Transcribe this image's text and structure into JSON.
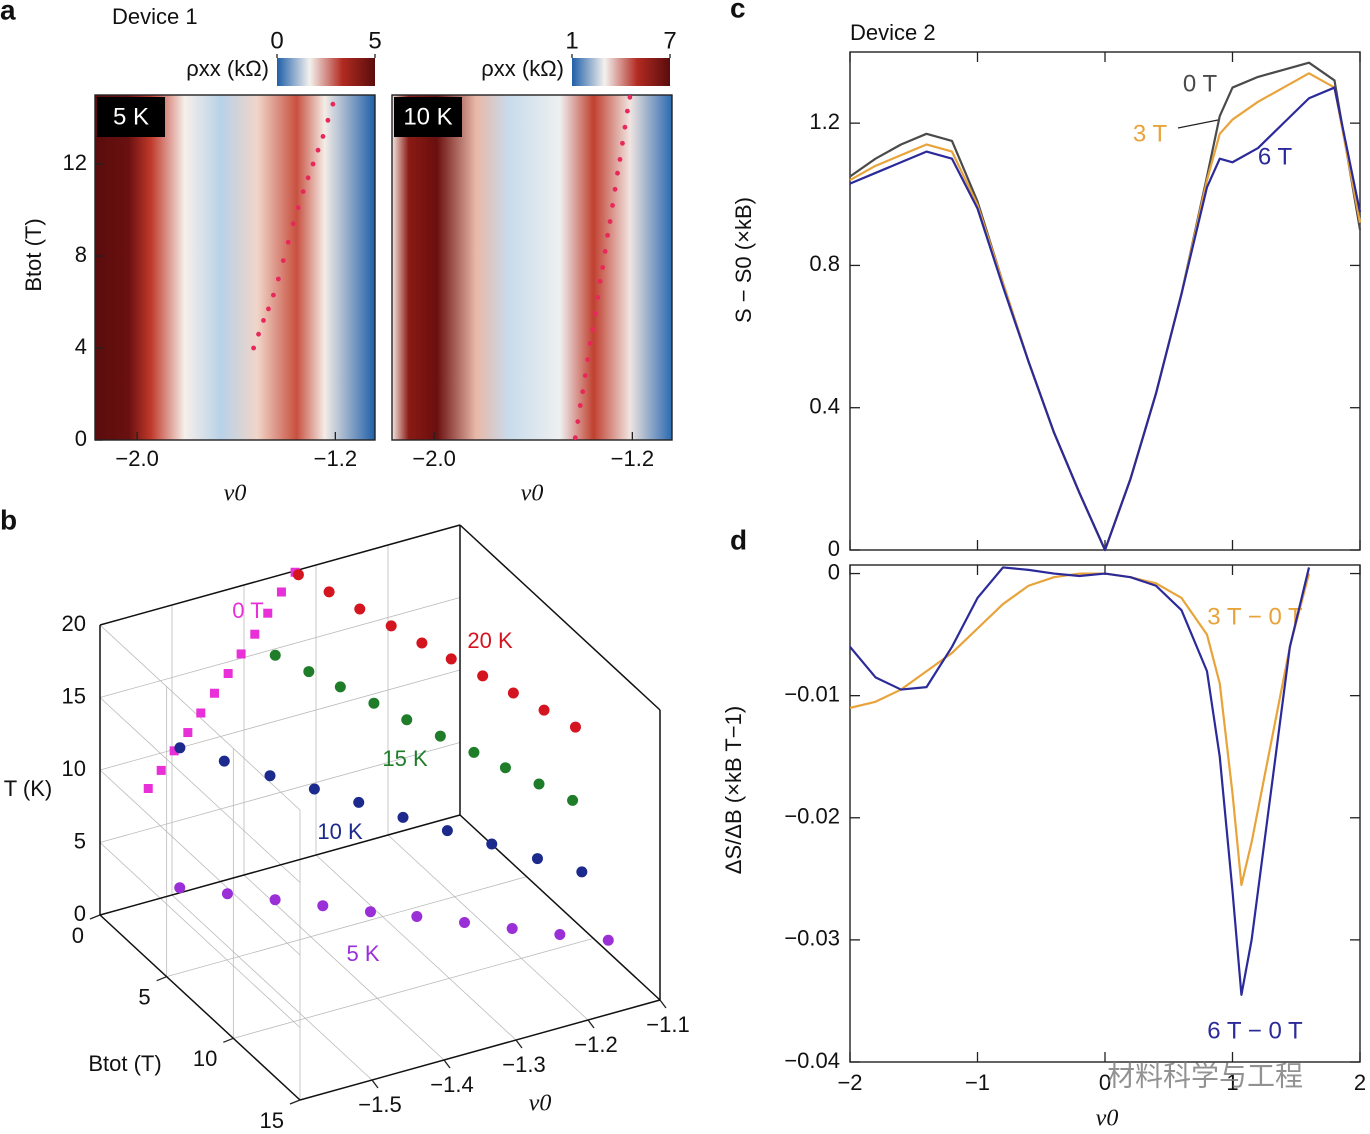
{
  "chart_data": [
    {
      "type": "heatmap",
      "panel_label": "a",
      "title": "Device 1",
      "annotation": "5 K",
      "colorbar": {
        "label": "ρxx (kΩ)",
        "lim": [
          0,
          5
        ],
        "ticks": [
          0,
          5
        ],
        "colormap": [
          "#1f5fa8",
          "#f4f1ee",
          "#b22b22",
          "#5a0c0c"
        ]
      },
      "xlim": [
        -2.17,
        -1.04
      ],
      "ylim": [
        0,
        15
      ],
      "xticks": [
        {
          "value": -2.0,
          "label": "−2.0"
        },
        {
          "value": -1.2,
          "label": "−1.2"
        }
      ],
      "yticks": [
        0,
        4,
        8,
        12
      ],
      "x_label": "ν0",
      "y_label": "Btot (T)",
      "series": [
        {
          "color": "#e8285a",
          "x": [
            -1.53,
            -1.51,
            -1.49,
            -1.47,
            -1.45,
            -1.43,
            -1.41,
            -1.39,
            -1.37,
            -1.35,
            -1.33,
            -1.31,
            -1.29,
            -1.27,
            -1.25,
            -1.23,
            -1.21
          ],
          "y": [
            4.0,
            4.6,
            5.2,
            5.7,
            6.3,
            7.0,
            7.8,
            8.6,
            9.4,
            10.1,
            10.8,
            11.4,
            12.0,
            12.6,
            13.2,
            13.9,
            14.6
          ]
        }
      ]
    },
    {
      "type": "heatmap",
      "annotation": "10 K",
      "colorbar": {
        "label": "ρxx (kΩ)",
        "lim": [
          1,
          7
        ],
        "ticks": [
          1,
          7
        ],
        "colormap": [
          "#1f5fa8",
          "#f4f1ee",
          "#b22b22",
          "#5a0c0c"
        ]
      },
      "xlim": [
        -2.17,
        -1.04
      ],
      "ylim": [
        0,
        15
      ],
      "xticks": [
        {
          "value": -2.0,
          "label": "−2.0"
        },
        {
          "value": -1.2,
          "label": "−1.2"
        }
      ],
      "x_label": "ν0",
      "series": [
        {
          "color": "#e8285a",
          "x": [
            -1.43,
            -1.42,
            -1.41,
            -1.4,
            -1.39,
            -1.38,
            -1.37,
            -1.36,
            -1.35,
            -1.34,
            -1.33,
            -1.32,
            -1.31,
            -1.3,
            -1.29,
            -1.28,
            -1.27,
            -1.26,
            -1.25,
            -1.24,
            -1.23,
            -1.22,
            -1.21
          ],
          "y": [
            0.1,
            0.8,
            1.5,
            2.1,
            2.8,
            3.5,
            4.2,
            4.8,
            5.5,
            6.2,
            6.9,
            7.5,
            8.2,
            8.9,
            9.5,
            10.2,
            10.9,
            11.6,
            12.2,
            12.9,
            13.6,
            14.3,
            14.9
          ]
        }
      ]
    },
    {
      "type": "scatter3d",
      "panel_label": "b",
      "xlim": [
        -1.6,
        -1.1
      ],
      "xticks": [
        {
          "value": -1.5,
          "label": "−1.5"
        },
        {
          "value": -1.4,
          "label": "−1.4"
        },
        {
          "value": -1.3,
          "label": "−1.3"
        },
        {
          "value": -1.2,
          "label": "−1.2"
        },
        {
          "value": -1.1,
          "label": "−1.1"
        }
      ],
      "ylim": [
        0,
        15
      ],
      "yticks": [
        0,
        5,
        10,
        15
      ],
      "zlim": [
        0,
        20
      ],
      "zticks": [
        0,
        5,
        10,
        15,
        20
      ],
      "x_label": "ν0",
      "y_label": "Btot (T)",
      "z_label": "T (K)",
      "series": [
        {
          "name": "0 T",
          "color": "#e82fd8",
          "marker": "square",
          "x": [
            -1.533,
            -1.515,
            -1.497,
            -1.478,
            -1.46,
            -1.441,
            -1.422,
            -1.404,
            -1.385,
            -1.367,
            -1.348,
            -1.329
          ],
          "y": [
            0,
            0,
            0,
            0,
            0,
            0,
            0,
            0,
            0,
            0,
            0,
            0
          ],
          "z": [
            7.8,
            8.8,
            9.9,
            10.9,
            12.0,
            13.1,
            14.2,
            15.3,
            16.4,
            17.6,
            18.8,
            19.9
          ]
        },
        {
          "name": "20 K",
          "color": "#d4141e",
          "x": [
            -1.33,
            -1.317,
            -1.304,
            -1.29,
            -1.277,
            -1.264,
            -1.25,
            -1.237,
            -1.224,
            -1.21
          ],
          "y": [
            0.3,
            1.9,
            3.5,
            5.1,
            6.7,
            8.2,
            9.8,
            11.4,
            13.0,
            14.6
          ],
          "z": [
            20,
            20,
            20,
            20,
            20,
            20,
            20,
            20,
            20,
            20
          ]
        },
        {
          "name": "15 K",
          "color": "#1f7d2a",
          "x": [
            -1.364,
            -1.347,
            -1.331,
            -1.314,
            -1.298,
            -1.281,
            -1.264,
            -1.248,
            -1.231,
            -1.214
          ],
          "y": [
            0.4,
            2.0,
            3.5,
            5.1,
            6.7,
            8.3,
            9.9,
            11.4,
            13.0,
            14.6
          ],
          "z": [
            15,
            15,
            15,
            15,
            15,
            15,
            15,
            15,
            15,
            15
          ]
        },
        {
          "name": "10 K",
          "color": "#1b2a8c",
          "x": [
            -1.489,
            -1.457,
            -1.425,
            -1.393,
            -1.361,
            -1.331,
            -1.299,
            -1.267,
            -1.235,
            -1.203
          ],
          "y": [
            0,
            1.6,
            3.3,
            4.9,
            6.5,
            8.2,
            9.8,
            11.4,
            13.1,
            14.7
          ],
          "z": [
            10,
            10,
            10,
            10,
            10,
            10,
            10,
            10,
            10,
            10
          ]
        },
        {
          "name": "5 K",
          "color": "#9a2fd8",
          "x": [
            -1.567,
            -1.523,
            -1.479,
            -1.435,
            -1.391,
            -1.347,
            -1.303,
            -1.259,
            -1.215,
            -1.17
          ],
          "y": [
            4.2,
            5.4,
            6.6,
            7.8,
            9.0,
            10.1,
            11.3,
            12.5,
            13.7,
            14.9
          ],
          "z": [
            5,
            5,
            5,
            5,
            5,
            5,
            5,
            5,
            5,
            5
          ]
        }
      ]
    },
    {
      "type": "line",
      "panel_label": "c",
      "title": "Device 2",
      "x": [
        -2,
        -1.8,
        -1.6,
        -1.4,
        -1.2,
        -1.0,
        -0.8,
        -0.6,
        -0.4,
        -0.2,
        0,
        0.2,
        0.4,
        0.6,
        0.8,
        0.9,
        1.0,
        1.2,
        1.4,
        1.6,
        1.8,
        2.0
      ],
      "xlim": [
        -2,
        2
      ],
      "ylim": [
        0,
        1.4
      ],
      "yticks": [
        0,
        0.4,
        0.8,
        1.2
      ],
      "y_label": "S − S0 (×kB)",
      "series": [
        {
          "name": "0 T",
          "color": "#4a4a4a",
          "values": [
            1.05,
            1.1,
            1.14,
            1.17,
            1.15,
            0.98,
            0.75,
            0.53,
            0.33,
            0.16,
            0,
            0.2,
            0.44,
            0.72,
            1.05,
            1.22,
            1.3,
            1.33,
            1.35,
            1.37,
            1.32,
            0.9
          ]
        },
        {
          "name": "3 T",
          "color": "#e8a33a",
          "values": [
            1.04,
            1.08,
            1.11,
            1.14,
            1.12,
            0.97,
            0.75,
            0.53,
            0.33,
            0.16,
            0,
            0.2,
            0.44,
            0.72,
            1.04,
            1.17,
            1.21,
            1.26,
            1.3,
            1.34,
            1.3,
            0.92
          ]
        },
        {
          "name": "6 T",
          "color": "#2b2a9a",
          "values": [
            1.03,
            1.06,
            1.09,
            1.12,
            1.1,
            0.96,
            0.74,
            0.53,
            0.33,
            0.16,
            0,
            0.2,
            0.44,
            0.72,
            1.02,
            1.1,
            1.09,
            1.13,
            1.2,
            1.27,
            1.3,
            0.95
          ]
        }
      ]
    },
    {
      "type": "line",
      "panel_label": "d",
      "x": [
        -2,
        -1.8,
        -1.6,
        -1.4,
        -1.2,
        -1.0,
        -0.8,
        -0.6,
        -0.4,
        -0.2,
        0,
        0.2,
        0.4,
        0.6,
        0.8,
        0.9,
        1.0,
        1.07,
        1.15,
        1.3,
        1.45,
        1.6
      ],
      "xlim": [
        -2,
        2
      ],
      "ylim": [
        -0.04,
        0.0007
      ],
      "xticks": [
        {
          "value": -2,
          "label": "−2"
        },
        {
          "value": -1,
          "label": "−1"
        },
        0,
        1,
        2
      ],
      "yticks": [
        0,
        {
          "value": -0.01,
          "label": "−0.01"
        },
        {
          "value": -0.02,
          "label": "−0.02"
        },
        {
          "value": -0.03,
          "label": "−0.03"
        },
        {
          "value": -0.04,
          "label": "−0.04"
        }
      ],
      "x_label": "ν0",
      "y_label": "ΔS/ΔB (×kB T−1)",
      "watermark": "材料科学与工程",
      "series": [
        {
          "name": "3 T − 0 T",
          "color": "#e8a33a",
          "values": [
            -0.011,
            -0.0105,
            -0.0095,
            -0.008,
            -0.0065,
            -0.0045,
            -0.0025,
            -0.001,
            -0.0003,
            0,
            0,
            -0.0003,
            -0.0008,
            -0.002,
            -0.005,
            -0.009,
            -0.018,
            -0.0255,
            -0.022,
            -0.014,
            -0.006,
            0
          ]
        },
        {
          "name": "6 T − 0 T",
          "color": "#2b2a9a",
          "values": [
            -0.006,
            -0.0085,
            -0.0095,
            -0.0093,
            -0.006,
            -0.002,
            0.0005,
            0.0003,
            0,
            -0.0002,
            0,
            -0.0003,
            -0.001,
            -0.003,
            -0.008,
            -0.015,
            -0.026,
            -0.0345,
            -0.03,
            -0.018,
            -0.006,
            0.0005
          ]
        }
      ]
    }
  ]
}
